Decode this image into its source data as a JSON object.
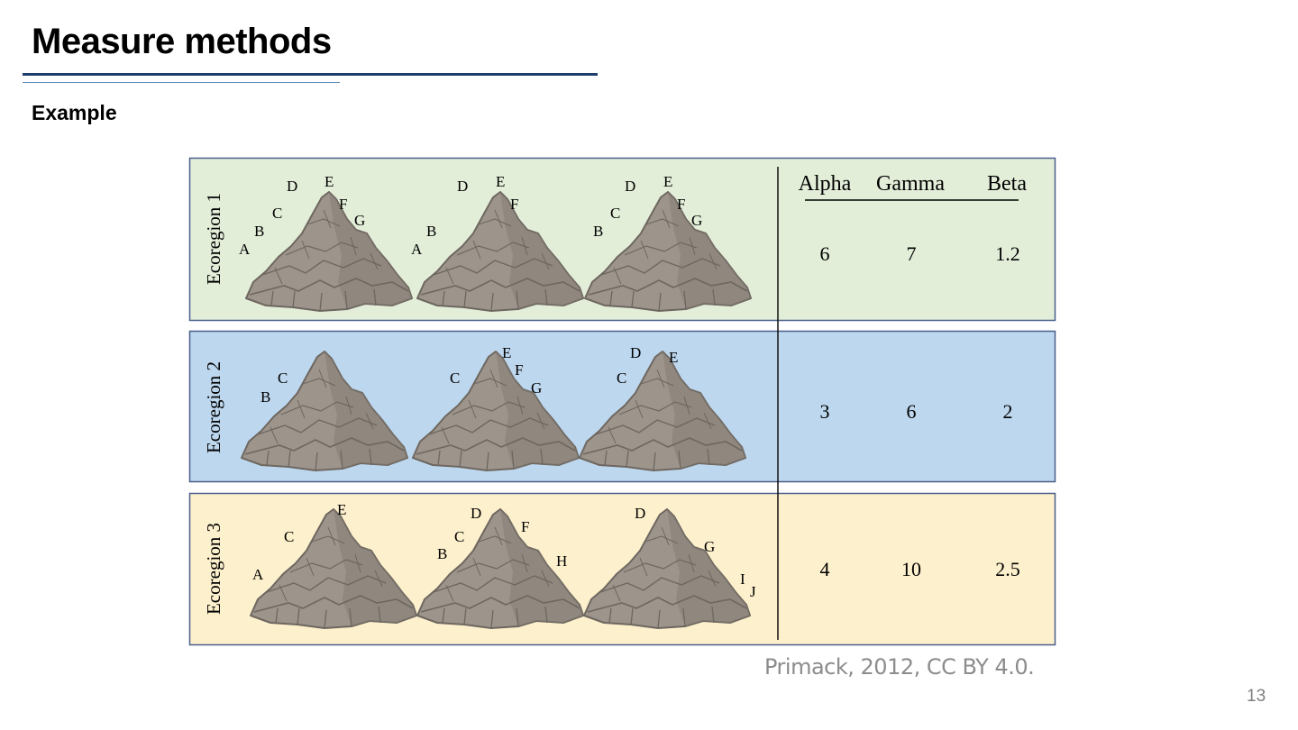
{
  "slide": {
    "title": "Measure methods",
    "subtitle": "Example",
    "citation": "Primack, 2012, CC BY 4.0.",
    "page_number": "13"
  },
  "figure": {
    "headers": [
      "Alpha",
      "Gamma",
      "Beta"
    ],
    "rows": [
      {
        "label": "Ecoregion 1",
        "color": "#e3eed9",
        "values": [
          "6",
          "7",
          "1.2"
        ],
        "mountains": [
          [
            "A",
            "B",
            "C",
            "D",
            "E",
            "F",
            "G"
          ],
          [
            "A",
            "B",
            "D",
            "E",
            "F"
          ],
          [
            "B",
            "C",
            "D",
            "E",
            "F",
            "G"
          ]
        ]
      },
      {
        "label": "Ecoregion 2",
        "color": "#bdd7ee",
        "values": [
          "3",
          "6",
          "2"
        ],
        "mountains": [
          [
            "B",
            "C"
          ],
          [
            "C",
            "E",
            "F",
            "G"
          ],
          [
            "C",
            "D",
            "E"
          ]
        ]
      },
      {
        "label": "Ecoregion 3",
        "color": "#fdf0cc",
        "values": [
          "4",
          "10",
          "2.5"
        ],
        "mountains": [
          [
            "A",
            "C",
            "E"
          ],
          [
            "B",
            "C",
            "D",
            "F",
            "H"
          ],
          [
            "D",
            "G",
            "I",
            "J"
          ]
        ]
      }
    ]
  }
}
